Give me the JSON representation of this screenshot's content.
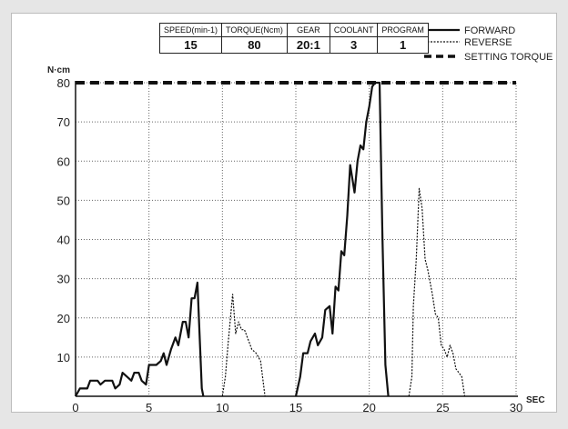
{
  "params_table": {
    "headers": [
      "SPEED(min-1)",
      "TORQUE(Ncm)",
      "GEAR",
      "COOLANT",
      "PROGRAM"
    ],
    "values": [
      "15",
      "80",
      "20:1",
      "3",
      "1"
    ]
  },
  "chart_data": {
    "type": "line",
    "xlabel": "SEC",
    "ylabel": "N·cm",
    "xlim": [
      0,
      30
    ],
    "ylim": [
      0,
      80
    ],
    "xticks": [
      0,
      5,
      10,
      15,
      20,
      25,
      30
    ],
    "yticks": [
      10,
      20,
      30,
      40,
      50,
      60,
      70,
      80
    ],
    "x_tick_labels": [
      "0",
      "5",
      "10",
      "15",
      "20",
      "25",
      "30"
    ],
    "y_tick_labels": [
      "10",
      "20",
      "30",
      "40",
      "50",
      "60",
      "70",
      "80"
    ],
    "grid": true,
    "legend_position": "top-right",
    "series": [
      {
        "name": "FORWARD",
        "style": "solid",
        "points": [
          [
            0,
            0
          ],
          [
            0.3,
            2
          ],
          [
            0.8,
            2
          ],
          [
            1,
            4
          ],
          [
            1.5,
            4
          ],
          [
            1.7,
            3
          ],
          [
            2,
            4
          ],
          [
            2.5,
            4
          ],
          [
            2.7,
            2
          ],
          [
            3,
            3
          ],
          [
            3.2,
            6
          ],
          [
            3.5,
            5
          ],
          [
            3.8,
            4
          ],
          [
            4,
            6
          ],
          [
            4.3,
            6
          ],
          [
            4.5,
            4
          ],
          [
            4.8,
            3
          ],
          [
            5,
            8
          ],
          [
            5.5,
            8
          ],
          [
            5.8,
            9
          ],
          [
            6,
            11
          ],
          [
            6.2,
            8
          ],
          [
            6.5,
            12
          ],
          [
            6.8,
            15
          ],
          [
            7,
            13
          ],
          [
            7.3,
            19
          ],
          [
            7.5,
            19
          ],
          [
            7.7,
            15
          ],
          [
            7.9,
            25
          ],
          [
            8.1,
            25
          ],
          [
            8.3,
            29
          ],
          [
            8.6,
            2
          ],
          [
            8.7,
            0
          ],
          null,
          [
            15,
            0
          ],
          [
            15.3,
            5
          ],
          [
            15.5,
            11
          ],
          [
            15.8,
            11
          ],
          [
            16,
            14
          ],
          [
            16.3,
            16
          ],
          [
            16.5,
            13
          ],
          [
            16.8,
            15
          ],
          [
            17,
            22
          ],
          [
            17.3,
            23
          ],
          [
            17.5,
            16
          ],
          [
            17.7,
            28
          ],
          [
            17.9,
            27
          ],
          [
            18.1,
            37
          ],
          [
            18.3,
            36
          ],
          [
            18.5,
            46
          ],
          [
            18.7,
            59
          ],
          [
            19,
            52
          ],
          [
            19.2,
            60
          ],
          [
            19.4,
            64
          ],
          [
            19.6,
            63
          ],
          [
            19.8,
            70
          ],
          [
            20,
            74
          ],
          [
            20.2,
            79
          ],
          [
            20.4,
            80
          ],
          [
            20.7,
            80
          ],
          [
            20.9,
            40
          ],
          [
            21.1,
            8
          ],
          [
            21.3,
            0
          ]
        ]
      },
      {
        "name": "REVERSE",
        "style": "dotted",
        "points": [
          [
            10,
            0
          ],
          [
            10.2,
            5
          ],
          [
            10.4,
            14
          ],
          [
            10.7,
            26
          ],
          [
            10.9,
            16
          ],
          [
            11.1,
            19
          ],
          [
            11.3,
            17
          ],
          [
            11.5,
            17
          ],
          [
            11.8,
            14
          ],
          [
            12,
            12
          ],
          [
            12.3,
            11
          ],
          [
            12.6,
            9
          ],
          [
            12.8,
            3
          ],
          [
            12.9,
            0
          ],
          null,
          [
            22.7,
            0
          ],
          [
            22.9,
            5
          ],
          [
            23,
            23
          ],
          [
            23.2,
            35
          ],
          [
            23.4,
            53
          ],
          [
            23.6,
            48
          ],
          [
            23.8,
            35
          ],
          [
            24,
            32
          ],
          [
            24.3,
            26
          ],
          [
            24.5,
            21
          ],
          [
            24.7,
            20
          ],
          [
            24.9,
            13
          ],
          [
            25.1,
            12
          ],
          [
            25.3,
            10
          ],
          [
            25.5,
            13
          ],
          [
            25.7,
            11
          ],
          [
            25.9,
            7
          ],
          [
            26.1,
            6
          ],
          [
            26.3,
            5
          ],
          [
            26.5,
            0
          ]
        ]
      },
      {
        "name": "SETTING TORQUE",
        "style": "dashed",
        "points": [
          [
            0,
            80
          ],
          [
            30,
            80
          ]
        ]
      }
    ]
  }
}
